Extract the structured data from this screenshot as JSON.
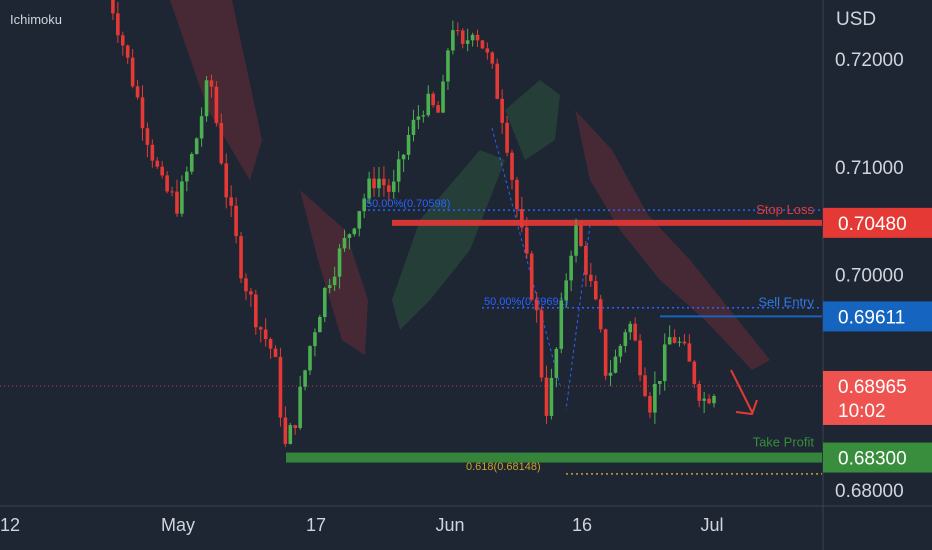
{
  "indicator_label": "Ichimoku",
  "currency": "USD",
  "colors": {
    "background": "#1e2633",
    "bull": "#4caf50",
    "bear": "#e53935",
    "stop_loss": "#e53935",
    "sell_entry": "#1565c0",
    "take_profit": "#388e3c",
    "last_price": "#ef5350",
    "axis_text": "#d1d4dc",
    "fib_blue": "#2962ff",
    "fib_gold": "#c9a227",
    "cloud_red": "#7a2e37",
    "cloud_green": "#2f5e3d"
  },
  "chart_data": {
    "type": "candlestick",
    "instrument_currency": "USD",
    "y_ticks": [
      "0.72000",
      "0.71000",
      "0.70000",
      "0.69000",
      "0.68000"
    ],
    "x_ticks": [
      "12",
      "May",
      "17",
      "Jun",
      "16",
      "Jul"
    ],
    "ylim": [
      0.6785,
      0.7255
    ],
    "price_labels": {
      "stop_loss": {
        "text": "Stop Loss",
        "value": "0.70480"
      },
      "sell_entry": {
        "text": "Sell Entry",
        "value": "0.69611"
      },
      "last_price": {
        "value": "0.68965",
        "countdown": "10:02"
      },
      "take_profit": {
        "text": "Take Profit",
        "value": "0.68300"
      }
    },
    "fib_labels": {
      "upper": "50.00%(0.70598)",
      "mid": "50.00%(0.69691)",
      "lower": "0.618(0.68148)"
    },
    "levels": {
      "stop_loss": 0.7048,
      "sell_entry": 0.69611,
      "take_profit": 0.683,
      "last_price": 0.68965,
      "fib_upper": 0.70598,
      "fib_mid": 0.69691,
      "fib_lower": 0.68148
    },
    "price_path": [
      [
        0,
        0.7265
      ],
      [
        8,
        0.7192
      ],
      [
        14,
        0.7135
      ],
      [
        20,
        0.7082
      ],
      [
        26,
        0.7065
      ],
      [
        32,
        0.7115
      ],
      [
        38,
        0.7185
      ],
      [
        44,
        0.7078
      ],
      [
        50,
        0.7002
      ],
      [
        56,
        0.6955
      ],
      [
        62,
        0.6925
      ],
      [
        66,
        0.6838
      ],
      [
        70,
        0.6868
      ],
      [
        76,
        0.6942
      ],
      [
        82,
        0.6995
      ],
      [
        88,
        0.7028
      ],
      [
        94,
        0.7065
      ],
      [
        100,
        0.7092
      ],
      [
        106,
        0.7075
      ],
      [
        112,
        0.7128
      ],
      [
        118,
        0.716
      ],
      [
        124,
        0.7148
      ],
      [
        128,
        0.7238
      ],
      [
        132,
        0.7205
      ],
      [
        136,
        0.7232
      ],
      [
        140,
        0.7212
      ],
      [
        144,
        0.7182
      ],
      [
        148,
        0.7138
      ],
      [
        152,
        0.7068
      ],
      [
        156,
        0.7012
      ],
      [
        160,
        0.696
      ],
      [
        163,
        0.687
      ],
      [
        166,
        0.6905
      ],
      [
        170,
        0.6985
      ],
      [
        174,
        0.7045
      ],
      [
        178,
        0.701
      ],
      [
        182,
        0.6968
      ],
      [
        186,
        0.6905
      ],
      [
        190,
        0.6925
      ],
      [
        194,
        0.696
      ],
      [
        198,
        0.6922
      ],
      [
        202,
        0.688
      ],
      [
        206,
        0.691
      ],
      [
        210,
        0.6945
      ],
      [
        214,
        0.6932
      ],
      [
        218,
        0.6908
      ],
      [
        222,
        0.6883
      ],
      [
        226,
        0.6895
      ]
    ]
  }
}
